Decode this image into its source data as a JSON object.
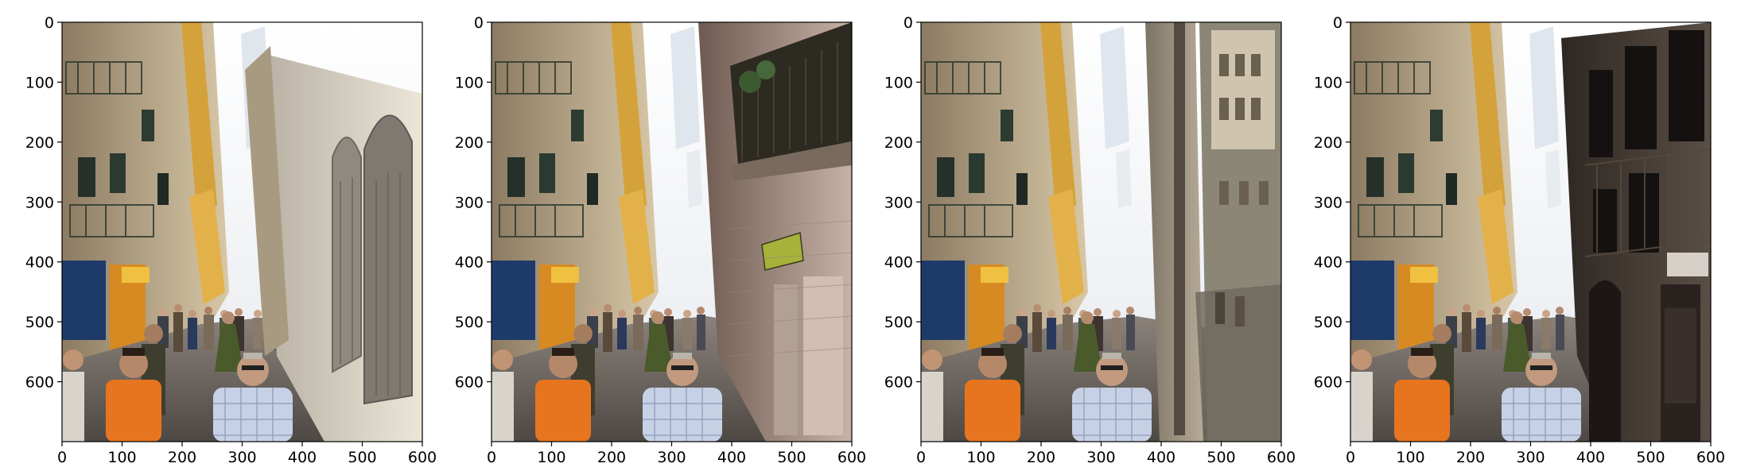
{
  "figure": {
    "panels": [
      {
        "name": "panel-1",
        "x_ticks": [
          "0",
          "100",
          "200",
          "300",
          "400",
          "500",
          "600"
        ],
        "y_ticks": [
          "0",
          "100",
          "200",
          "300",
          "400",
          "500",
          "600"
        ],
        "xlim": [
          0,
          600
        ],
        "ylim": [
          0,
          700
        ],
        "right_side": "plain-wall"
      },
      {
        "name": "panel-2",
        "x_ticks": [
          "0",
          "100",
          "200",
          "300",
          "400",
          "500",
          "600"
        ],
        "y_ticks": [
          "0",
          "100",
          "200",
          "300",
          "400",
          "500",
          "600"
        ],
        "xlim": [
          0,
          600
        ],
        "ylim": [
          0,
          700
        ],
        "right_side": "balcony-building"
      },
      {
        "name": "panel-3",
        "x_ticks": [
          "0",
          "100",
          "200",
          "300",
          "400",
          "500",
          "600"
        ],
        "y_ticks": [
          "0",
          "100",
          "200",
          "300",
          "400",
          "500",
          "600"
        ],
        "xlim": [
          0,
          600
        ],
        "ylim": [
          0,
          700
        ],
        "right_side": "pillar-and-buildings"
      },
      {
        "name": "panel-4",
        "x_ticks": [
          "0",
          "100",
          "200",
          "300",
          "400",
          "500",
          "600"
        ],
        "y_ticks": [
          "0",
          "100",
          "200",
          "300",
          "400",
          "500",
          "600"
        ],
        "xlim": [
          0,
          600
        ],
        "ylim": [
          0,
          700
        ],
        "right_side": "dark-building"
      }
    ],
    "colors": {
      "sky": "#f2f4f6",
      "street": "#6b6460",
      "left_buildings": "#c9b79a",
      "awning_yellow": "#e3a93a",
      "orange_shirt": "#e7741f",
      "check_shirt": "#c7d1e6"
    }
  }
}
